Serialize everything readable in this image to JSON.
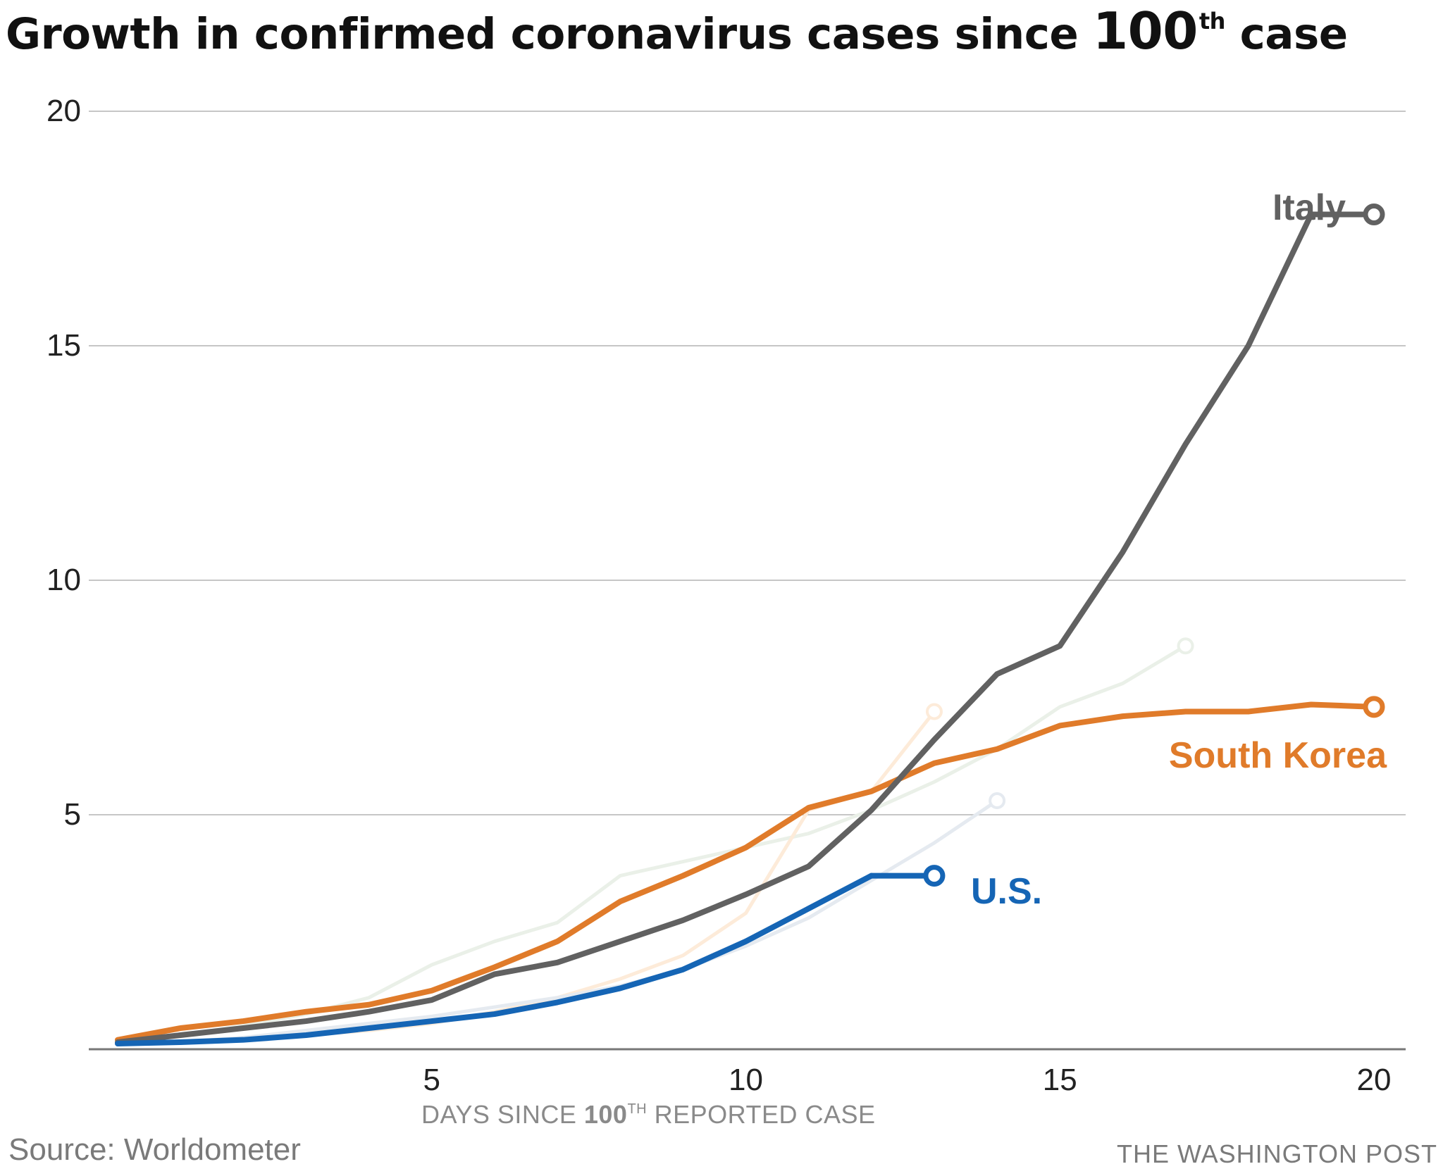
{
  "title": {
    "prefix": "Growth in confirmed coronavirus cases since ",
    "number": "100",
    "sup": "th",
    "suffix": " case"
  },
  "xlabel": {
    "prefix": "DAYS SINCE ",
    "number": "100",
    "sup": "TH",
    "suffix": " REPORTED CASE"
  },
  "source": "Source: Worldometer",
  "credit": "THE WASHINGTON POST",
  "chart_data": {
    "type": "line",
    "xlabel": "DAYS SINCE 100TH REPORTED CASE",
    "ylabel": "",
    "xlim": [
      0,
      21
    ],
    "ylim": [
      0,
      20
    ],
    "xticks": [
      5,
      10,
      15,
      20
    ],
    "yticks": [
      5,
      10,
      15,
      20
    ],
    "grid": "horizontal",
    "legend": "direct labels at line ends",
    "series": [
      {
        "name": "",
        "color": "#eaf0e8",
        "highlighted": false,
        "x": [
          0,
          1,
          2,
          3,
          4,
          5,
          6,
          7,
          8,
          9,
          10,
          11,
          12,
          13,
          14,
          15,
          16,
          17
        ],
        "values": [
          0.15,
          0.3,
          0.5,
          0.75,
          1.1,
          1.8,
          2.3,
          2.7,
          3.7,
          4.0,
          4.3,
          4.6,
          5.1,
          5.7,
          6.4,
          7.3,
          7.8,
          8.6
        ]
      },
      {
        "name": "",
        "color": "#fdebd9",
        "highlighted": false,
        "x": [
          0,
          1,
          2,
          3,
          4,
          5,
          6,
          7,
          8,
          9,
          10,
          11,
          12,
          13
        ],
        "values": [
          0.1,
          0.15,
          0.2,
          0.3,
          0.4,
          0.55,
          0.8,
          1.1,
          1.5,
          2.0,
          2.9,
          5.1,
          5.5,
          7.2
        ]
      },
      {
        "name": "",
        "color": "#e5eaf0",
        "highlighted": false,
        "x": [
          0,
          1,
          2,
          3,
          4,
          5,
          6,
          7,
          8,
          9,
          10,
          11,
          12,
          13,
          14
        ],
        "values": [
          0.1,
          0.15,
          0.25,
          0.4,
          0.55,
          0.7,
          0.9,
          1.1,
          1.35,
          1.7,
          2.2,
          2.8,
          3.6,
          4.4,
          5.3
        ]
      },
      {
        "name": "South Korea",
        "color": "#e07b2a",
        "highlighted": true,
        "x": [
          0,
          1,
          2,
          3,
          4,
          5,
          6,
          7,
          8,
          9,
          10,
          11,
          12,
          13,
          14,
          15,
          16,
          17,
          18,
          19,
          20
        ],
        "values": [
          0.2,
          0.45,
          0.6,
          0.8,
          0.95,
          1.25,
          1.75,
          2.3,
          3.15,
          3.7,
          4.3,
          5.15,
          5.5,
          6.1,
          6.4,
          6.9,
          7.1,
          7.2,
          7.2,
          7.35,
          7.3
        ]
      },
      {
        "name": "Italy",
        "color": "#616161",
        "highlighted": true,
        "x": [
          0,
          1,
          2,
          3,
          4,
          5,
          6,
          7,
          8,
          9,
          10,
          11,
          12,
          13,
          14,
          15,
          16,
          17,
          18,
          19,
          20
        ],
        "values": [
          0.15,
          0.3,
          0.45,
          0.6,
          0.8,
          1.05,
          1.6,
          1.85,
          2.3,
          2.75,
          3.3,
          3.9,
          5.1,
          6.6,
          8.0,
          8.6,
          10.6,
          12.9,
          15.0,
          17.8,
          null
        ]
      },
      {
        "name": "U.S.",
        "color": "#1565b5",
        "highlighted": true,
        "x": [
          0,
          1,
          2,
          3,
          4,
          5,
          6,
          7,
          8,
          9,
          10,
          11,
          12,
          13
        ],
        "values": [
          0.12,
          0.15,
          0.2,
          0.3,
          0.45,
          0.6,
          0.75,
          1.0,
          1.3,
          1.7,
          2.3,
          3.0,
          3.7,
          null
        ]
      }
    ],
    "labels": {
      "italy": "Italy",
      "south_korea": "South Korea",
      "us": "U.S."
    }
  }
}
